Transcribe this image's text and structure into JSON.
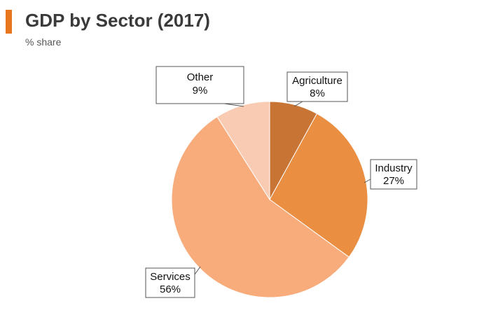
{
  "header": {
    "title": "GDP by Sector (2017)",
    "subtitle": "% share",
    "accent_color": "#E8761E"
  },
  "chart_data": {
    "type": "pie",
    "title": "GDP by Sector (2017)",
    "subtitle": "% share",
    "start": "12 o'clock",
    "direction": "clockwise",
    "legend": "none",
    "slices": [
      {
        "name": "Agriculture",
        "value": 8,
        "label": "8%",
        "color": "#C87434"
      },
      {
        "name": "Industry",
        "value": 27,
        "label": "27%",
        "color": "#EA8E42"
      },
      {
        "name": "Services",
        "value": 56,
        "label": "56%",
        "color": "#F8AC7C"
      },
      {
        "name": "Other",
        "value": 9,
        "label": "9%",
        "color": "#F9CBB2"
      }
    ]
  }
}
